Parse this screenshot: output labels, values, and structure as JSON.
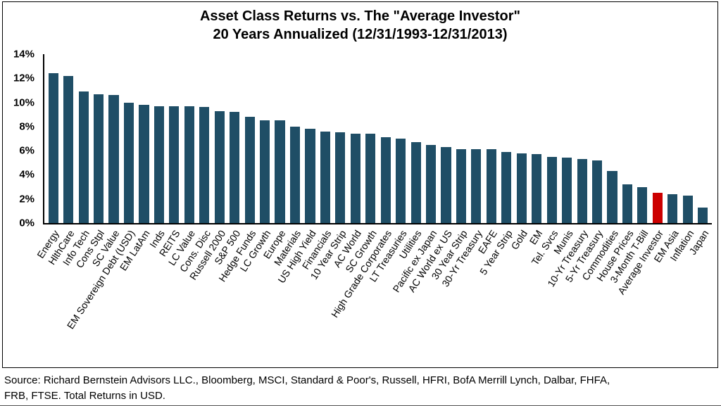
{
  "chart_data": {
    "type": "bar",
    "title_line1": "Asset Class Returns vs. The \"Average Investor\"",
    "title_line2": "20 Years Annualized (12/31/1993-12/31/2013)",
    "categories": [
      "Energy",
      "HlthCare",
      "Info Tech",
      "Cons Stpl",
      "SC Value",
      "EM Sovereign Debt (USD)",
      "EM LatAm",
      "Inds",
      "REITS",
      "LC Value",
      "Cons. Disc",
      "Russell 2000",
      "S&P 500",
      "Hedge Funds",
      "LC Growth",
      "Europe",
      "Materials",
      "US High Yield",
      "Financials",
      "10 Year Strip",
      "AC World",
      "SC Growth",
      "High Grade Corporates",
      "LT Treasuries",
      "Utilities",
      "Pacific ex Japan",
      "AC World ex US",
      "30 Year Strip",
      "30-Yr Treasury",
      "EAFE",
      "5 Year Strip",
      "Gold",
      "EM",
      "Tel. Svcs",
      "Munis",
      "10-Yr Treasury",
      "5-Yr Treasury",
      "Commodities",
      "House Prices",
      "3-Month T-Bill",
      "Average Investor",
      "EM Asia",
      "Inflation",
      "Japan"
    ],
    "values": [
      12.4,
      12.2,
      10.9,
      10.7,
      10.6,
      10.0,
      9.8,
      9.7,
      9.7,
      9.7,
      9.6,
      9.3,
      9.2,
      8.8,
      8.5,
      8.5,
      8.0,
      7.8,
      7.6,
      7.5,
      7.4,
      7.4,
      7.1,
      7.0,
      6.7,
      6.5,
      6.3,
      6.1,
      6.1,
      6.1,
      5.9,
      5.8,
      5.7,
      5.5,
      5.4,
      5.3,
      5.2,
      4.3,
      3.2,
      3.0,
      2.5,
      2.4,
      2.3,
      1.3
    ],
    "highlight_category": "Average Investor",
    "bar_color": "#1f4e66",
    "highlight_color": "#cc0000",
    "ylim": [
      0,
      14
    ],
    "ytick_labels": [
      "0%",
      "2%",
      "4%",
      "6%",
      "8%",
      "10%",
      "12%",
      "14%"
    ],
    "grid": false,
    "legend": false,
    "units": "%"
  },
  "source_note": {
    "line1": "Source: Richard Bernstein Advisors LLC., Bloomberg, MSCI, Standard & Poor's, Russell, HFRI, BofA Merrill Lynch, Dalbar, FHFA,",
    "line2": "FRB, FTSE.  Total Returns in USD."
  }
}
